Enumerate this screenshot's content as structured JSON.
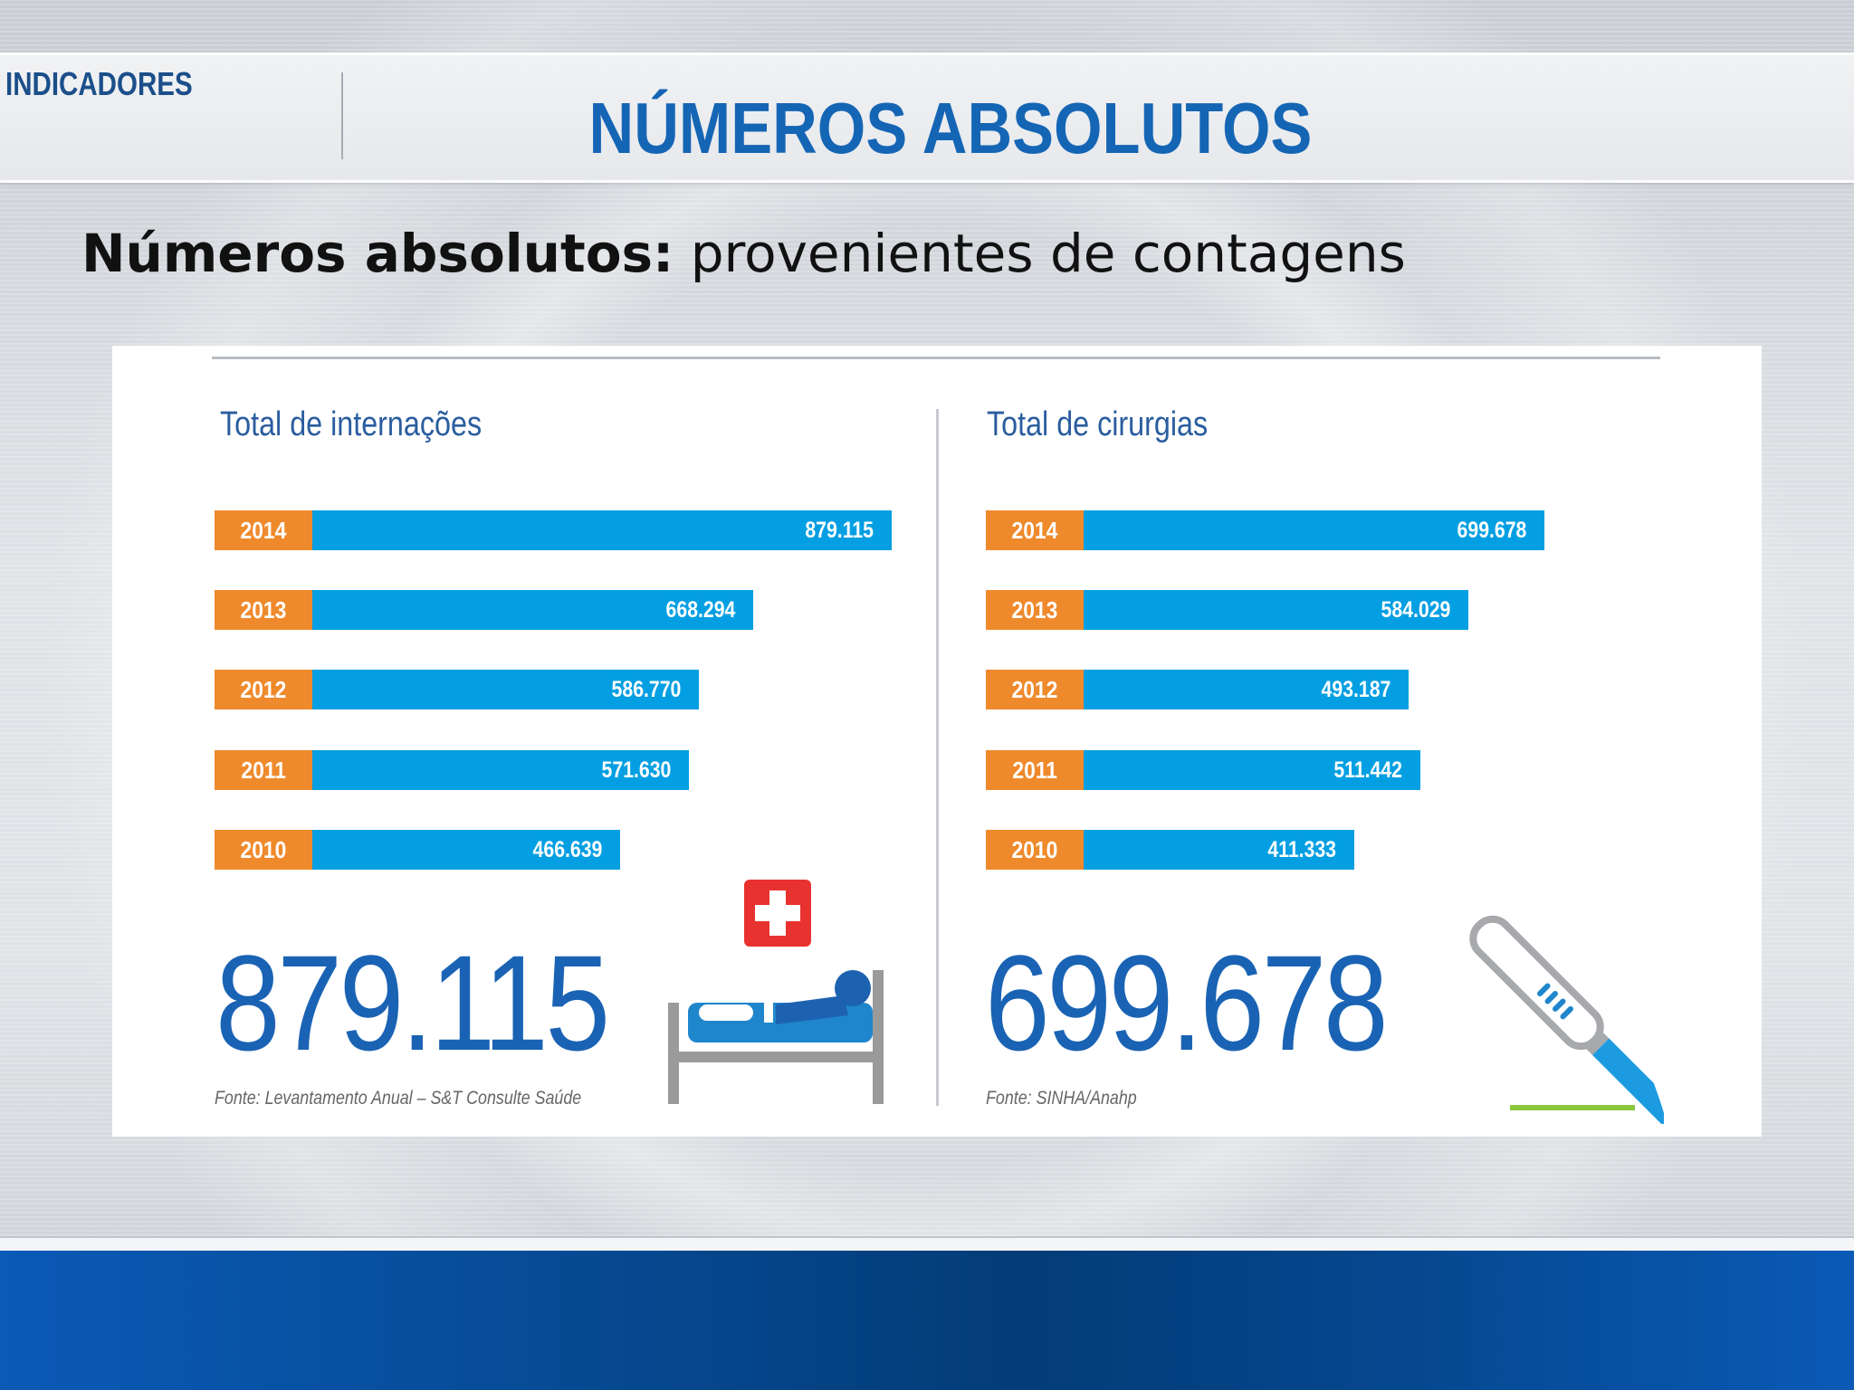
{
  "header": {
    "section_label": "INDICADORES",
    "title": "NÚMEROS ABSOLUTOS"
  },
  "subtitle": {
    "bold": "Números absolutos:",
    "rest": " provenientes de contagens"
  },
  "colors": {
    "title_blue": "#1565b5",
    "bar_blue": "#049fe2",
    "year_orange": "#ef8a2c",
    "big_number_blue": "#1a63b4",
    "footer_blue": "#06488f"
  },
  "chart_data": [
    {
      "type": "bar",
      "orientation": "horizontal",
      "title": "Total de internações",
      "categories": [
        "2014",
        "2013",
        "2012",
        "2011",
        "2010"
      ],
      "values": [
        879115,
        668294,
        586770,
        571630,
        466639
      ],
      "value_labels": [
        "879.115",
        "668.294",
        "586.770",
        "571.630",
        "466.639"
      ],
      "highlight": "879.115",
      "source": "Fonte: Levantamento Anual – S&T Consulte Saúde",
      "icon": "hospital-bed-icon"
    },
    {
      "type": "bar",
      "orientation": "horizontal",
      "title": "Total de cirurgias",
      "categories": [
        "2014",
        "2013",
        "2012",
        "2011",
        "2010"
      ],
      "values": [
        699678,
        584029,
        493187,
        511442,
        411333
      ],
      "value_labels": [
        "699.678",
        "584.029",
        "493.187",
        "511.442",
        "411.333"
      ],
      "highlight": "699.678",
      "source": "Fonte: SINHA/Anahp",
      "icon": "scalpel-icon"
    }
  ]
}
